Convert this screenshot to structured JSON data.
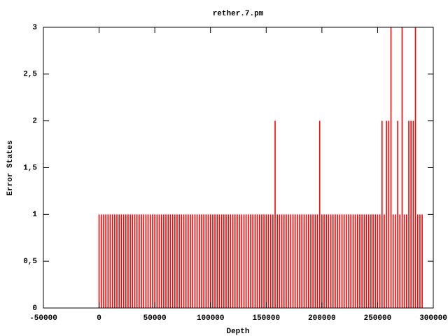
{
  "chart_data": {
    "type": "impulse",
    "title": "rether.7.pm",
    "xlabel": "Depth",
    "ylabel": "Error States",
    "color": "#ff0000",
    "xlim": [
      -50000,
      300000
    ],
    "xticks": [
      -50000,
      0,
      50000,
      100000,
      150000,
      200000,
      250000,
      300000
    ],
    "ylim": [
      0,
      3
    ],
    "yticks": [
      0,
      {
        "value": 0.5,
        "label": "0,5"
      },
      1,
      {
        "value": 1.5,
        "label": "1,5"
      },
      2,
      {
        "value": 2.5,
        "label": "2,5"
      },
      3
    ],
    "x": [
      0,
      2000,
      4000,
      6000,
      8000,
      10000,
      12000,
      14000,
      16000,
      18000,
      20000,
      22000,
      24000,
      26000,
      28000,
      30000,
      32000,
      34000,
      36000,
      38000,
      40000,
      42000,
      44000,
      46000,
      48000,
      50000,
      52000,
      54000,
      56000,
      58000,
      60000,
      62000,
      64000,
      66000,
      68000,
      70000,
      72000,
      74000,
      76000,
      78000,
      80000,
      82000,
      84000,
      86000,
      88000,
      90000,
      92000,
      94000,
      96000,
      98000,
      100000,
      102000,
      104000,
      106000,
      108000,
      110000,
      112000,
      114000,
      116000,
      118000,
      120000,
      122000,
      124000,
      126000,
      128000,
      130000,
      132000,
      134000,
      136000,
      138000,
      140000,
      142000,
      144000,
      146000,
      148000,
      150000,
      152000,
      154000,
      156000,
      158000,
      160000,
      162000,
      164000,
      166000,
      168000,
      170000,
      172000,
      174000,
      176000,
      178000,
      180000,
      182000,
      184000,
      186000,
      188000,
      190000,
      192000,
      194000,
      196000,
      198000,
      200000,
      202000,
      204000,
      206000,
      208000,
      210000,
      212000,
      214000,
      216000,
      218000,
      220000,
      222000,
      224000,
      226000,
      228000,
      230000,
      232000,
      234000,
      236000,
      238000,
      240000,
      242000,
      244000,
      246000,
      248000,
      250000,
      252000,
      254000,
      256000,
      258000,
      260000,
      262000,
      264000,
      266000,
      268000,
      270000,
      272000,
      274000,
      276000,
      278000,
      280000,
      282000,
      284000,
      286000,
      288000,
      290000
    ],
    "values": [
      1,
      1,
      1,
      1,
      1,
      1,
      1,
      1,
      1,
      1,
      1,
      1,
      1,
      1,
      1,
      1,
      1,
      1,
      1,
      1,
      1,
      1,
      1,
      1,
      1,
      1,
      1,
      1,
      1,
      1,
      1,
      1,
      1,
      1,
      1,
      1,
      1,
      1,
      1,
      1,
      1,
      1,
      1,
      1,
      1,
      1,
      1,
      1,
      1,
      1,
      1,
      1,
      1,
      1,
      1,
      1,
      1,
      1,
      1,
      1,
      1,
      1,
      1,
      1,
      1,
      1,
      1,
      1,
      1,
      1,
      1,
      1,
      1,
      1,
      1,
      1,
      1,
      1,
      1,
      2,
      1,
      1,
      1,
      1,
      1,
      1,
      1,
      1,
      1,
      1,
      1,
      1,
      1,
      1,
      1,
      1,
      1,
      1,
      1,
      2,
      1,
      1,
      1,
      1,
      1,
      1,
      1,
      1,
      1,
      1,
      1,
      1,
      1,
      1,
      1,
      1,
      1,
      1,
      1,
      1,
      1,
      1,
      1,
      1,
      1,
      1,
      1,
      2,
      1,
      2,
      2,
      3,
      1,
      1,
      2,
      1,
      3,
      1,
      1,
      2,
      2,
      2,
      3,
      1,
      1,
      1
    ]
  }
}
